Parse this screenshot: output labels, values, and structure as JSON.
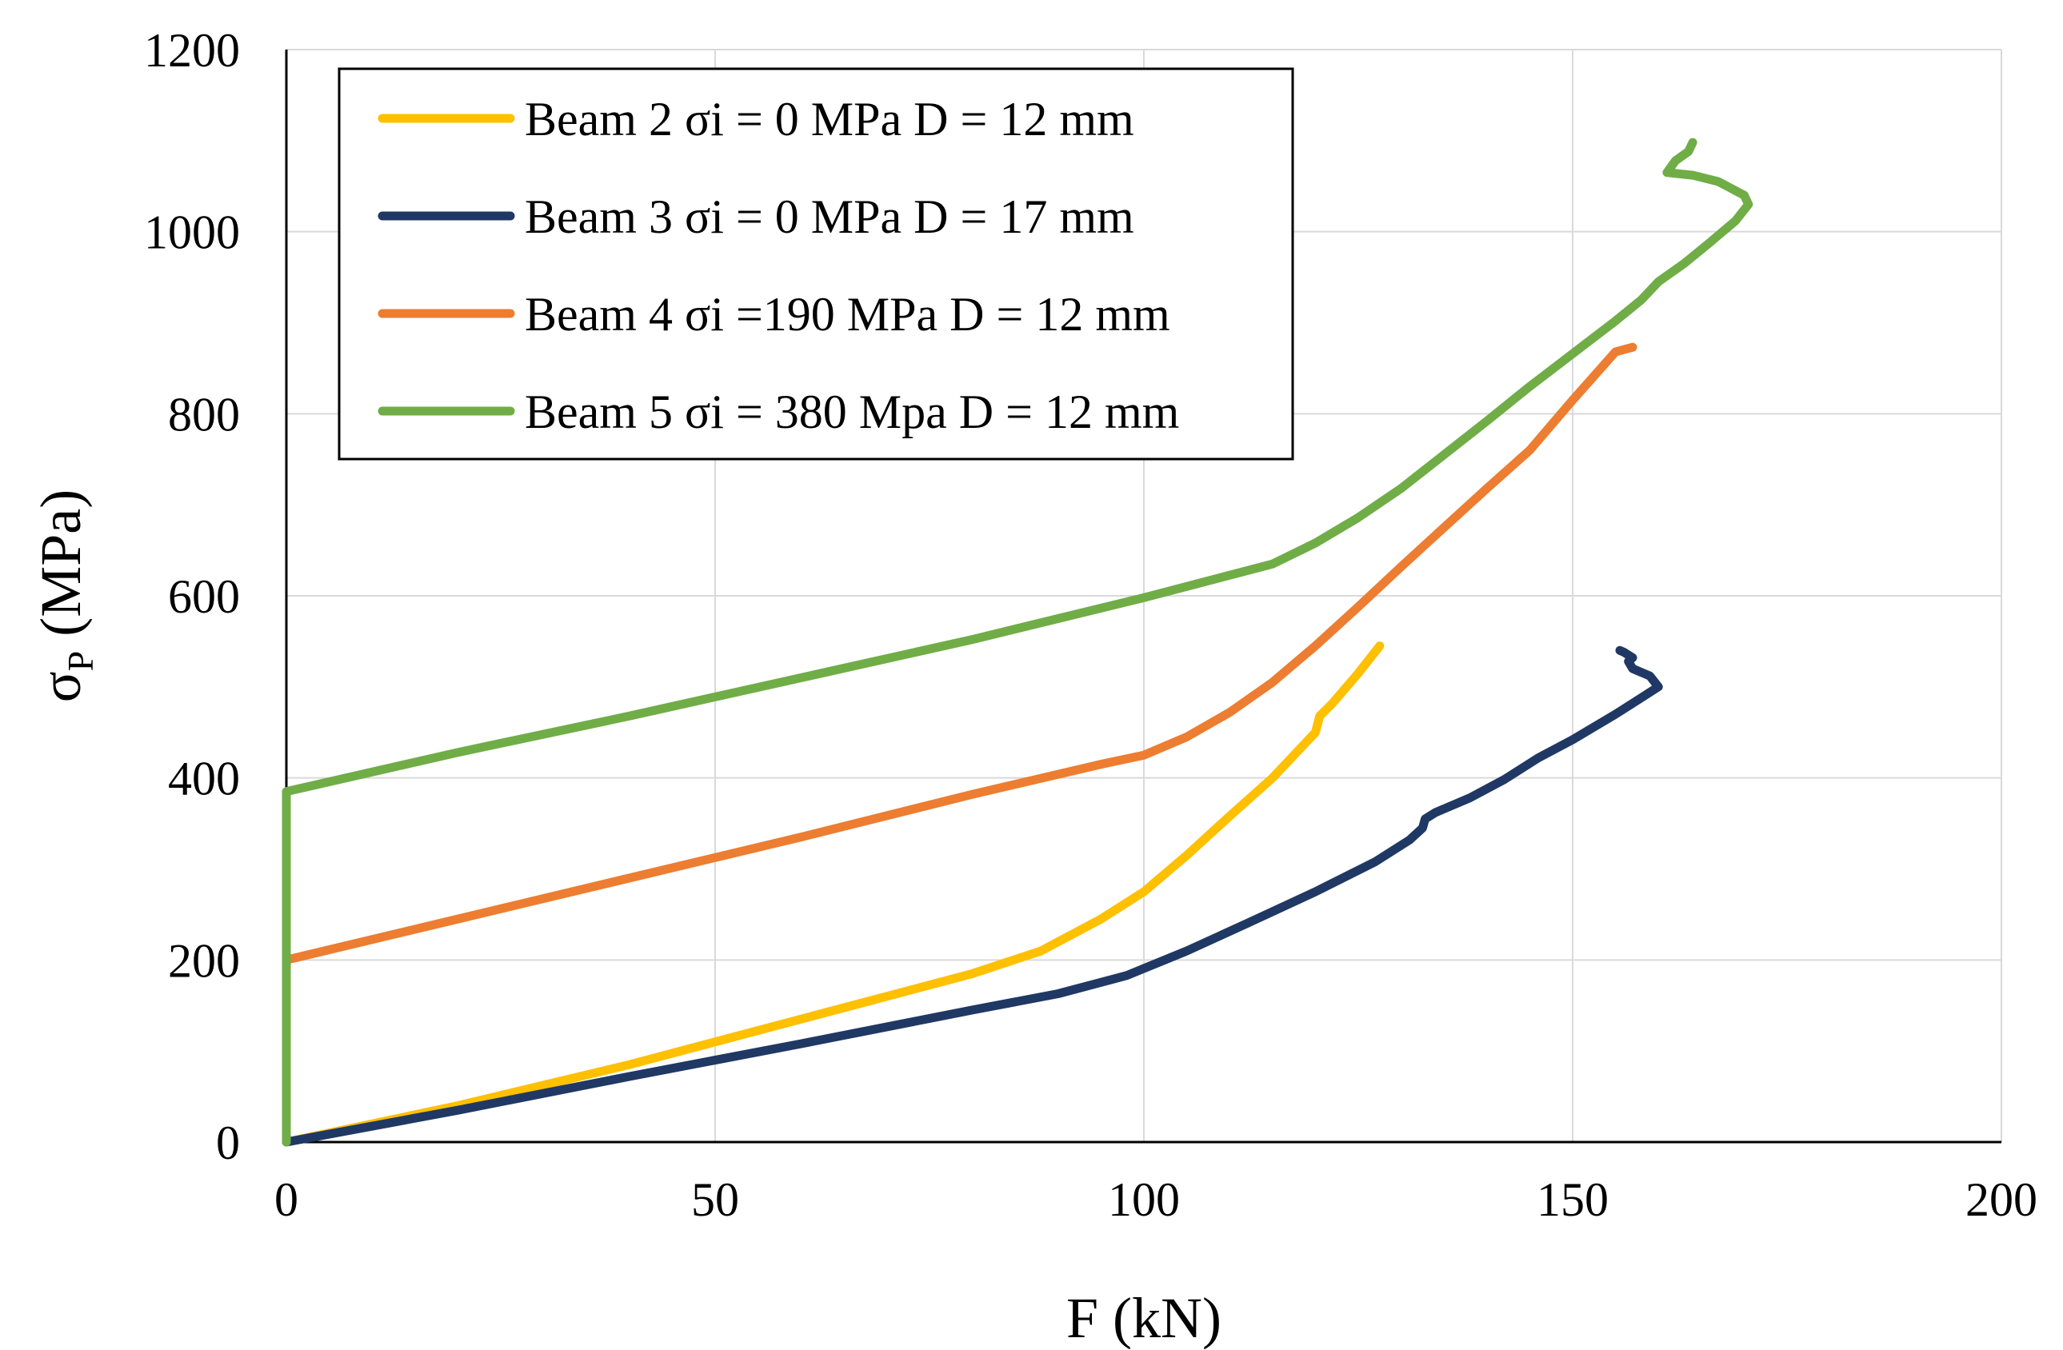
{
  "chart_data": {
    "type": "line",
    "title": "",
    "xlabel": "F (kN)",
    "ylabel": "σ",
    "ylabel_subscript": "P",
    "ylabel_unit": " (MPa)",
    "xlim": [
      0,
      200
    ],
    "ylim": [
      0,
      1200
    ],
    "xticks": [
      0,
      50,
      100,
      150,
      200
    ],
    "yticks": [
      0,
      200,
      400,
      600,
      800,
      1000,
      1200
    ],
    "grid": true,
    "legend_position": "top-left",
    "series": [
      {
        "name": "Beam 2 σi = 0 MPa D = 12 mm",
        "color": "#FFC000",
        "points": [
          [
            0,
            0
          ],
          [
            20,
            40
          ],
          [
            40,
            85
          ],
          [
            60,
            135
          ],
          [
            80,
            185
          ],
          [
            88,
            210
          ],
          [
            95,
            245
          ],
          [
            100,
            275
          ],
          [
            105,
            315
          ],
          [
            110,
            358
          ],
          [
            115,
            400
          ],
          [
            118,
            430
          ],
          [
            120,
            450
          ],
          [
            120.5,
            468
          ],
          [
            122,
            482
          ],
          [
            125,
            515
          ],
          [
            127.5,
            545
          ]
        ]
      },
      {
        "name": "Beam 3 σi = 0 MPa D = 17 mm",
        "color": "#203864",
        "points": [
          [
            0,
            0
          ],
          [
            20,
            35
          ],
          [
            40,
            72
          ],
          [
            60,
            108
          ],
          [
            80,
            145
          ],
          [
            90,
            163
          ],
          [
            98,
            183
          ],
          [
            105,
            210
          ],
          [
            112,
            240
          ],
          [
            120,
            275
          ],
          [
            127,
            308
          ],
          [
            131,
            332
          ],
          [
            132.5,
            345
          ],
          [
            132.8,
            355
          ],
          [
            134,
            362
          ],
          [
            138,
            378
          ],
          [
            142,
            398
          ],
          [
            146,
            422
          ],
          [
            150,
            442
          ],
          [
            155,
            470
          ],
          [
            158,
            488
          ],
          [
            160,
            500
          ],
          [
            159,
            512
          ],
          [
            157,
            520
          ],
          [
            156.5,
            528
          ],
          [
            157,
            532
          ],
          [
            156,
            538
          ],
          [
            155.5,
            540
          ]
        ]
      },
      {
        "name": "Beam 4 σi =190 MPa D = 12 mm",
        "color": "#ED7D31",
        "points": [
          [
            0,
            200
          ],
          [
            20,
            245
          ],
          [
            40,
            290
          ],
          [
            60,
            335
          ],
          [
            80,
            382
          ],
          [
            95,
            415
          ],
          [
            100,
            425
          ],
          [
            105,
            445
          ],
          [
            110,
            472
          ],
          [
            115,
            505
          ],
          [
            120,
            545
          ],
          [
            125,
            588
          ],
          [
            130,
            632
          ],
          [
            135,
            675
          ],
          [
            140,
            718
          ],
          [
            145,
            760
          ],
          [
            150,
            815
          ],
          [
            155,
            868
          ],
          [
            157,
            873
          ]
        ]
      },
      {
        "name": "Beam 5 σi = 380 Mpa D = 12 mm",
        "color": "#70AD47",
        "points": [
          [
            0,
            0
          ],
          [
            0,
            385
          ],
          [
            20,
            428
          ],
          [
            40,
            468
          ],
          [
            60,
            510
          ],
          [
            80,
            552
          ],
          [
            100,
            598
          ],
          [
            115,
            635
          ],
          [
            120,
            658
          ],
          [
            125,
            686
          ],
          [
            130,
            718
          ],
          [
            135,
            755
          ],
          [
            140,
            792
          ],
          [
            145,
            830
          ],
          [
            150,
            866
          ],
          [
            155,
            902
          ],
          [
            158,
            925
          ],
          [
            160,
            945
          ],
          [
            163,
            965
          ],
          [
            166,
            988
          ],
          [
            169,
            1012
          ],
          [
            170.5,
            1030
          ],
          [
            170,
            1040
          ],
          [
            167,
            1055
          ],
          [
            164,
            1062
          ],
          [
            161,
            1065
          ],
          [
            162,
            1078
          ],
          [
            163.5,
            1088
          ],
          [
            164,
            1098
          ]
        ]
      }
    ]
  }
}
